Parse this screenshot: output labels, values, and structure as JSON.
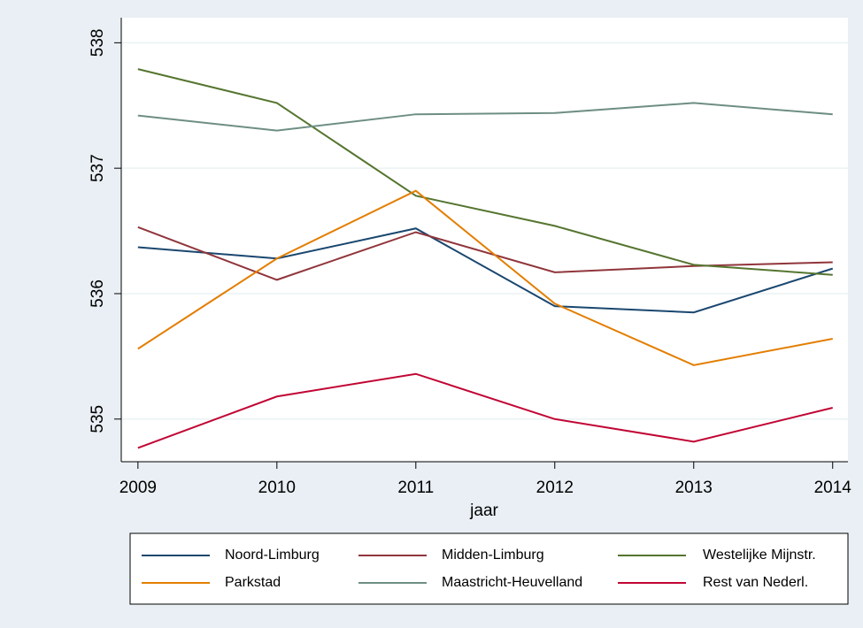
{
  "chart_data": {
    "type": "line",
    "x_label": "jaar",
    "x": [
      2009,
      2010,
      2011,
      2012,
      2013,
      2014
    ],
    "xlim": [
      2008.88,
      2014.11
    ],
    "xticks": [
      2009,
      2010,
      2011,
      2012,
      2013,
      2014
    ],
    "ylim": [
      534.66,
      538.2
    ],
    "yticks": [
      535,
      536,
      537,
      538
    ],
    "grid": true,
    "legend": "bottom",
    "series": [
      {
        "name": "Noord-Limburg",
        "color": "#1a476f",
        "values": [
          536.37,
          536.28,
          536.52,
          535.9,
          535.85,
          536.2
        ]
      },
      {
        "name": "Midden-Limburg",
        "color": "#90353b",
        "values": [
          536.53,
          536.11,
          536.49,
          536.17,
          536.22,
          536.25
        ]
      },
      {
        "name": "Westelijke Mijnstr.",
        "color": "#55752f",
        "values": [
          537.79,
          537.52,
          536.78,
          536.54,
          536.23,
          536.15
        ]
      },
      {
        "name": "Parkstad",
        "color": "#e37e00",
        "values": [
          535.56,
          536.28,
          536.82,
          535.92,
          535.43,
          535.64
        ]
      },
      {
        "name": "Maastricht-Heuvelland",
        "color": "#6e8e84",
        "values": [
          537.42,
          537.3,
          537.43,
          537.44,
          537.52,
          537.43
        ]
      },
      {
        "name": "Rest van Nederl.",
        "color": "#c10534",
        "values": [
          534.77,
          535.18,
          535.36,
          535.0,
          534.82,
          535.09
        ]
      }
    ]
  }
}
